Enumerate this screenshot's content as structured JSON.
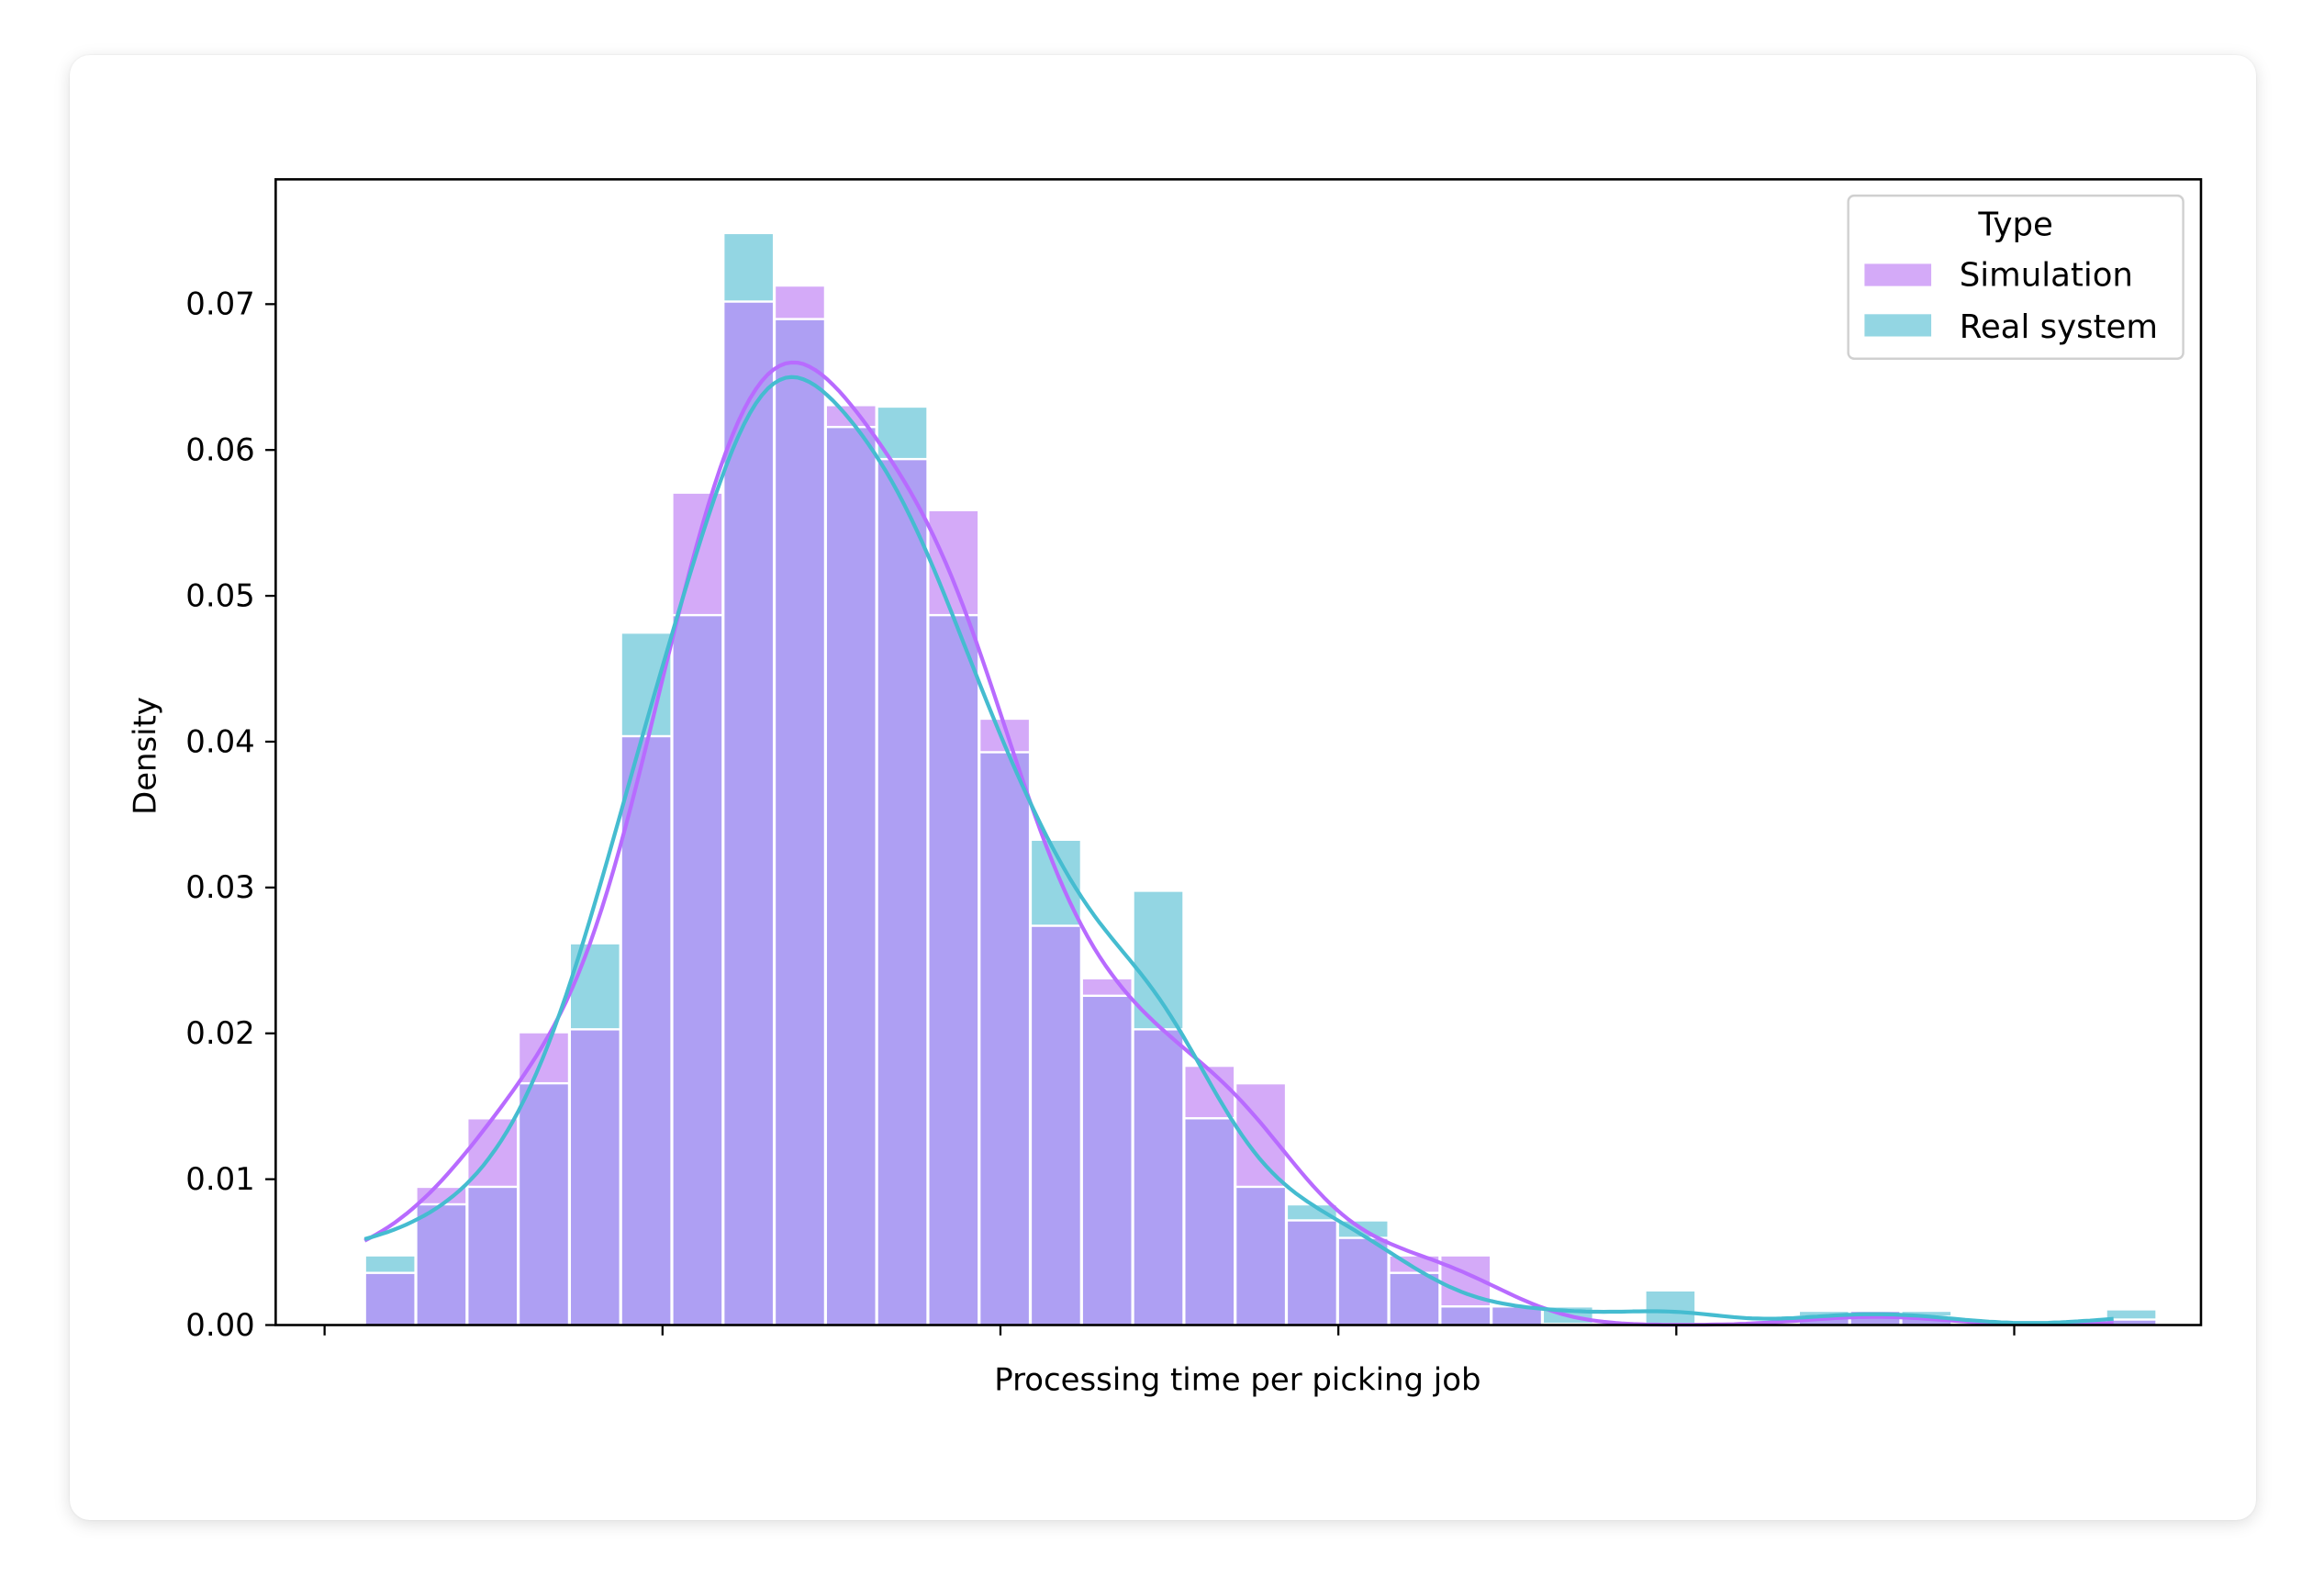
{
  "chart_data": {
    "type": "bar",
    "subtype": "histogram_with_kde",
    "title": "",
    "xlabel": "Processing time per picking job",
    "ylabel": "Density",
    "ylim": [
      0,
      0.078
    ],
    "yticks": [
      "0.00",
      "0.01",
      "0.02",
      "0.03",
      "0.04",
      "0.05",
      "0.06",
      "0.07"
    ],
    "xticks_labels_visible": false,
    "xtick_count": 6,
    "grid": false,
    "legend": {
      "title": "Type",
      "position": "upper right",
      "entries": [
        "Simulation",
        "Real system"
      ]
    },
    "bin_count": 35,
    "categories": [
      "bin1",
      "bin2",
      "bin3",
      "bin4",
      "bin5",
      "bin6",
      "bin7",
      "bin8",
      "bin9",
      "bin10",
      "bin11",
      "bin12",
      "bin13",
      "bin14",
      "bin15",
      "bin16",
      "bin17",
      "bin18",
      "bin19",
      "bin20",
      "bin21",
      "bin22",
      "bin23",
      "bin24",
      "bin25",
      "bin26",
      "bin27",
      "bin28",
      "bin29",
      "bin30",
      "bin31",
      "bin32",
      "bin33",
      "bin34",
      "bin35"
    ],
    "series": [
      {
        "name": "Simulation",
        "color": "#c77dff",
        "bar_color": "#d4aaf8",
        "values": [
          0.0035,
          0.0094,
          0.0141,
          0.02,
          0.0202,
          0.0403,
          0.057,
          0.0701,
          0.0712,
          0.063,
          0.0593,
          0.0558,
          0.0415,
          0.0273,
          0.0237,
          0.0202,
          0.0177,
          0.0165,
          0.0071,
          0.0059,
          0.0047,
          0.0047,
          0.0012,
          0.0,
          0.0,
          0.0,
          0.0,
          0.0,
          0.0005,
          0.0009,
          0.0005,
          0.0,
          0.0,
          0.0,
          0.0003
        ]
      },
      {
        "name": "Real system",
        "color": "#4bbfd3",
        "bar_color": "#93d6e3",
        "values": [
          0.0047,
          0.0082,
          0.0094,
          0.0165,
          0.0261,
          0.0474,
          0.0486,
          0.0748,
          0.0689,
          0.0615,
          0.0629,
          0.0486,
          0.0392,
          0.0332,
          0.0225,
          0.0297,
          0.0141,
          0.0094,
          0.0082,
          0.0071,
          0.0035,
          0.0012,
          0.0012,
          0.0012,
          0.0,
          0.0023,
          0.0,
          0.0,
          0.0009,
          0.0009,
          0.0009,
          0.0,
          0.0,
          0.0,
          0.001
        ]
      }
    ],
    "kde": [
      {
        "name": "Simulation",
        "peak": 0.066,
        "color": "#b86bff"
      },
      {
        "name": "Real system",
        "peak": 0.065,
        "color": "#45bcd0"
      }
    ]
  },
  "colors": {
    "simulation": "#d4aaf8",
    "real_system": "#93d6e3",
    "overlap": "#ae9ff3",
    "sim_kde": "#b86bff",
    "real_kde": "#45bcd0"
  }
}
